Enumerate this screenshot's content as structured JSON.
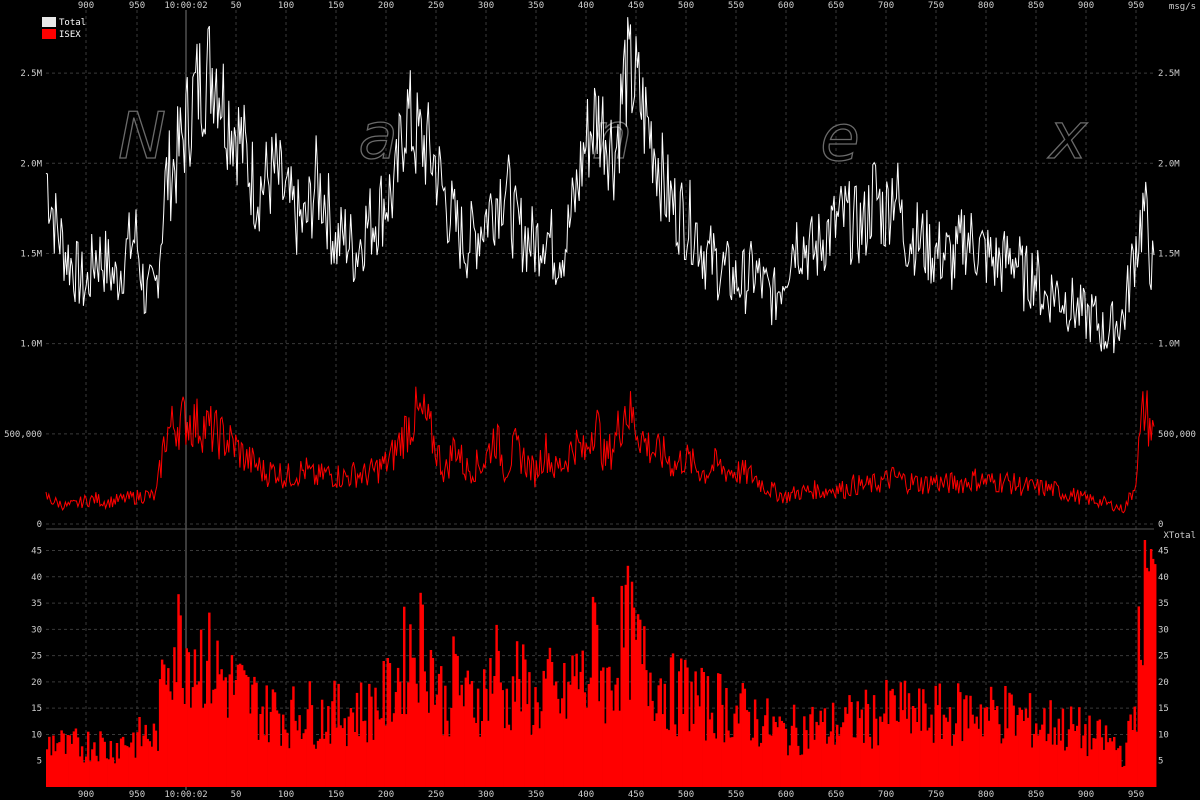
{
  "watermark": [
    "N",
    "a",
    "n",
    "e",
    "x"
  ],
  "colors": {
    "total": "#ffffff",
    "isex": "#ff0000",
    "grid": "#3a3a3a",
    "background": "#000000"
  },
  "top_axis": {
    "time_label": "10:00:02",
    "unit_label": "msg/s",
    "ticks": [
      "900",
      "950",
      "10:00:02",
      "50",
      "100",
      "150",
      "200",
      "250",
      "300",
      "350",
      "400",
      "450",
      "500",
      "550",
      "600",
      "650",
      "700",
      "750",
      "800",
      "850",
      "900",
      "950"
    ]
  },
  "bottom_axis": {
    "time_label": "10:00:02",
    "ticks": [
      "900",
      "950",
      "10:00:02",
      "50",
      "100",
      "150",
      "200",
      "250",
      "300",
      "350",
      "400",
      "450",
      "500",
      "550",
      "600",
      "650",
      "700",
      "750",
      "800",
      "850",
      "900",
      "950"
    ]
  },
  "chart_data": [
    {
      "type": "line",
      "title": "",
      "ylabel": "msg/s",
      "ylim": [
        0,
        2850000
      ],
      "y_ticks": [
        {
          "value": 0,
          "label": "0"
        },
        {
          "value": 500000,
          "label": "500,000"
        },
        {
          "value": 1000000,
          "label": "1.0M"
        },
        {
          "value": 1500000,
          "label": "1.5M"
        },
        {
          "value": 2000000,
          "label": "2.0M"
        },
        {
          "value": 2500000,
          "label": "2.5M"
        }
      ],
      "legend": {
        "placement": "top-left"
      },
      "series": [
        {
          "name": "Total",
          "color": "#ffffff",
          "x": [
            0,
            10,
            20,
            30,
            40,
            50,
            60,
            70,
            80,
            90,
            100,
            110,
            120,
            130,
            140,
            150,
            160,
            170,
            180,
            190,
            200,
            210,
            220,
            230,
            240,
            250,
            260,
            270,
            280,
            290,
            300,
            310,
            320,
            330,
            340,
            350,
            360,
            370,
            380,
            390,
            400,
            410,
            420,
            430,
            440,
            450,
            460,
            470,
            480,
            490,
            500,
            510,
            520,
            530,
            540,
            550,
            560,
            570,
            580,
            590,
            600,
            610,
            620,
            630,
            640,
            650,
            660,
            670,
            680,
            690,
            700,
            710,
            720,
            730,
            740,
            750,
            760,
            770,
            780,
            790,
            800,
            810,
            820,
            830,
            840,
            850,
            860,
            870,
            880,
            890,
            900,
            910,
            920,
            930,
            940,
            950,
            960,
            970,
            980,
            990,
            1000,
            1010,
            1020,
            1030,
            1040,
            1050,
            1060,
            1070,
            1080,
            1090,
            1100,
            1110
          ],
          "values": [
            1950000,
            1650000,
            1500000,
            1400000,
            1300000,
            1500000,
            1450000,
            1350000,
            1500000,
            1600000,
            1250000,
            1300000,
            1900000,
            2000000,
            2200000,
            2400000,
            2500000,
            2550000,
            2300000,
            2200000,
            2050000,
            1850000,
            1900000,
            1950000,
            1800000,
            1700000,
            1650000,
            1900000,
            1800000,
            1550000,
            1600000,
            1500000,
            1650000,
            1700000,
            1800000,
            1850000,
            2300000,
            2150000,
            2100000,
            2000000,
            1800000,
            1650000,
            1550000,
            1600000,
            1700000,
            1800000,
            1900000,
            1650000,
            1600000,
            1550000,
            1650000,
            1500000,
            1550000,
            1800000,
            2100000,
            2250000,
            2200000,
            2050000,
            2500000,
            2450000,
            2250000,
            2100000,
            1850000,
            1750000,
            1700000,
            1650000,
            1500000,
            1450000,
            1400000,
            1350000,
            1350000,
            1400000,
            1300000,
            1250000,
            1400000,
            1600000,
            1550000,
            1500000,
            1600000,
            1650000,
            1700000,
            1650000,
            1650000,
            1850000,
            1700000,
            1900000,
            1600000,
            1600000,
            1550000,
            1500000,
            1500000,
            1450000,
            1600000,
            1550000,
            1500000,
            1450000,
            1450000,
            1500000,
            1350000,
            1400000,
            1250000,
            1300000,
            1250000,
            1200000,
            1150000,
            1150000,
            1050000,
            1100000,
            1150000,
            1500000,
            1750000,
            1350000
          ]
        },
        {
          "name": "ISEX",
          "color": "#ff0000",
          "x": [
            0,
            10,
            20,
            30,
            40,
            50,
            60,
            70,
            80,
            90,
            100,
            110,
            120,
            130,
            140,
            150,
            160,
            170,
            180,
            190,
            200,
            210,
            220,
            230,
            240,
            250,
            260,
            270,
            280,
            290,
            300,
            310,
            320,
            330,
            340,
            350,
            360,
            370,
            380,
            390,
            400,
            410,
            420,
            430,
            440,
            450,
            460,
            470,
            480,
            490,
            500,
            510,
            520,
            530,
            540,
            550,
            560,
            570,
            580,
            590,
            600,
            610,
            620,
            630,
            640,
            650,
            660,
            670,
            680,
            690,
            700,
            710,
            720,
            730,
            740,
            750,
            760,
            770,
            780,
            790,
            800,
            810,
            820,
            830,
            840,
            850,
            860,
            870,
            880,
            890,
            900,
            910,
            920,
            930,
            940,
            950,
            960,
            970,
            980,
            990,
            1000,
            1010,
            1020,
            1030,
            1040,
            1050,
            1060,
            1070,
            1080,
            1090,
            1100,
            1110
          ],
          "values": [
            150000,
            120000,
            100000,
            110000,
            130000,
            140000,
            120000,
            130000,
            140000,
            150000,
            160000,
            150000,
            500000,
            560000,
            580000,
            560000,
            540000,
            500000,
            470000,
            430000,
            360000,
            330000,
            280000,
            300000,
            260000,
            280000,
            300000,
            250000,
            280000,
            270000,
            260000,
            280000,
            270000,
            300000,
            330000,
            400000,
            520000,
            600000,
            580000,
            430000,
            280000,
            450000,
            300000,
            320000,
            350000,
            500000,
            300000,
            420000,
            350000,
            280000,
            420000,
            300000,
            350000,
            450000,
            380000,
            600000,
            350000,
            460000,
            650000,
            560000,
            450000,
            400000,
            380000,
            320000,
            370000,
            320000,
            280000,
            330000,
            300000,
            290000,
            280000,
            260000,
            210000,
            180000,
            150000,
            170000,
            180000,
            190000,
            180000,
            200000,
            190000,
            220000,
            210000,
            220000,
            240000,
            260000,
            240000,
            230000,
            220000,
            240000,
            220000,
            230000,
            230000,
            250000,
            240000,
            230000,
            240000,
            220000,
            210000,
            200000,
            200000,
            190000,
            170000,
            160000,
            140000,
            130000,
            120000,
            100000,
            80000,
            200000,
            650000,
            480000
          ]
        }
      ]
    },
    {
      "type": "bar",
      "title": "",
      "ylabel": "XTotal",
      "ylim": [
        0,
        47
      ],
      "y_ticks": [
        {
          "value": 5,
          "label": "5"
        },
        {
          "value": 10,
          "label": "10"
        },
        {
          "value": 15,
          "label": "15"
        },
        {
          "value": 20,
          "label": "20"
        },
        {
          "value": 25,
          "label": "25"
        },
        {
          "value": 30,
          "label": "30"
        },
        {
          "value": 35,
          "label": "35"
        },
        {
          "value": 40,
          "label": "40"
        },
        {
          "value": 45,
          "label": "45"
        }
      ],
      "series": [
        {
          "name": "XTotal",
          "color": "#ff0000",
          "x": [
            0,
            10,
            20,
            30,
            40,
            50,
            60,
            70,
            80,
            90,
            100,
            110,
            120,
            130,
            140,
            150,
            160,
            170,
            180,
            190,
            200,
            210,
            220,
            230,
            240,
            250,
            260,
            270,
            280,
            290,
            300,
            310,
            320,
            330,
            340,
            350,
            360,
            370,
            380,
            390,
            400,
            410,
            420,
            430,
            440,
            450,
            460,
            470,
            480,
            490,
            500,
            510,
            520,
            530,
            540,
            550,
            560,
            570,
            580,
            590,
            600,
            610,
            620,
            630,
            640,
            650,
            660,
            670,
            680,
            690,
            700,
            710,
            720,
            730,
            740,
            750,
            760,
            770,
            780,
            790,
            800,
            810,
            820,
            830,
            840,
            850,
            860,
            870,
            880,
            890,
            900,
            910,
            920,
            930,
            940,
            950,
            960,
            970,
            980,
            990,
            1000,
            1010,
            1020,
            1030,
            1040,
            1050,
            1060,
            1070,
            1080,
            1090,
            1100,
            1110
          ],
          "values": [
            8,
            9,
            7,
            8,
            8,
            9,
            7,
            8,
            9,
            9,
            10,
            9,
            27,
            28,
            27,
            26,
            24,
            22,
            20,
            19,
            17,
            16,
            14,
            15,
            13,
            14,
            15,
            13,
            14,
            14,
            14,
            15,
            14,
            16,
            17,
            20,
            25,
            28,
            27,
            20,
            15,
            22,
            16,
            17,
            18,
            24,
            15,
            21,
            18,
            15,
            20,
            16,
            17,
            22,
            19,
            29,
            18,
            23,
            30,
            26,
            22,
            21,
            19,
            17,
            18,
            17,
            15,
            16,
            15,
            14,
            14,
            13,
            12,
            11,
            10,
            11,
            11,
            12,
            11,
            12,
            12,
            13,
            13,
            13,
            14,
            15,
            14,
            14,
            13,
            14,
            13,
            14,
            14,
            15,
            14,
            14,
            14,
            13,
            13,
            12,
            12,
            12,
            11,
            11,
            10,
            9,
            9,
            8,
            6,
            15,
            42,
            35
          ]
        }
      ]
    }
  ]
}
